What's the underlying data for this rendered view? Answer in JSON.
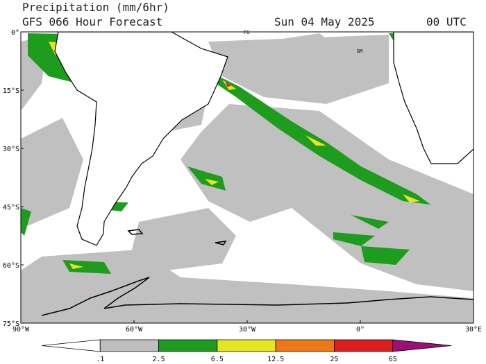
{
  "header": {
    "title": "Precipitation (mm/6hr)",
    "subtitle": "GFS 066 Hour Forecast",
    "date": "Sun 04 May 2025",
    "time": "00 UTC"
  },
  "map": {
    "lat_labels": [
      "0°",
      "15°S",
      "30°S",
      "45°S",
      "60°S",
      "75°S"
    ],
    "lon_labels": [
      "90°W",
      "60°W",
      "30°W",
      "0°",
      "30°E"
    ],
    "place_labels": [
      "FG",
      "GM"
    ]
  },
  "legend": {
    "labels": [
      ".1",
      "2.5",
      "6.5",
      "12.5",
      "25",
      "65"
    ],
    "colors": [
      "#ffffff",
      "#bebebe",
      "#1e9c1e",
      "#e6e61e",
      "#f07814",
      "#dc1e1e",
      "#9b0f78"
    ]
  }
}
